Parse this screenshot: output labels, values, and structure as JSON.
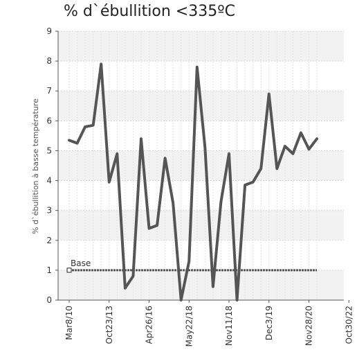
{
  "chart_data": {
    "type": "line",
    "title": "% d`ébullition <335ºC",
    "ylabel": "% d`ébullition à basse température",
    "xlabel": "",
    "ylim": [
      0,
      9
    ],
    "yticks": [
      "0",
      "1",
      "2",
      "3",
      "4",
      "5",
      "6",
      "7",
      "8",
      "9"
    ],
    "xtick_labels": [
      "Mar8/10",
      "Oct23/13",
      "Apr26/16",
      "May22/18",
      "Nov11/18",
      "Dec3/19",
      "Nov28/20",
      "Oct30/22"
    ],
    "xtick_positions": [
      0,
      5,
      10,
      15,
      20,
      25,
      30,
      35
    ],
    "grid": true,
    "series": [
      {
        "name": "",
        "color": "#555555",
        "values": [
          5.35,
          5.25,
          5.8,
          5.85,
          7.9,
          3.95,
          4.9,
          0.4,
          0.8,
          5.4,
          2.4,
          2.5,
          4.75,
          3.25,
          0.0,
          1.3,
          7.8,
          5.1,
          0.45,
          3.3,
          4.9,
          0.0,
          3.85,
          3.95,
          4.4,
          6.9,
          4.4,
          5.15,
          4.9,
          5.6,
          5.05,
          5.4
        ]
      }
    ],
    "baseline": {
      "label": "Base",
      "value": 1.0,
      "color": "#555555"
    }
  }
}
